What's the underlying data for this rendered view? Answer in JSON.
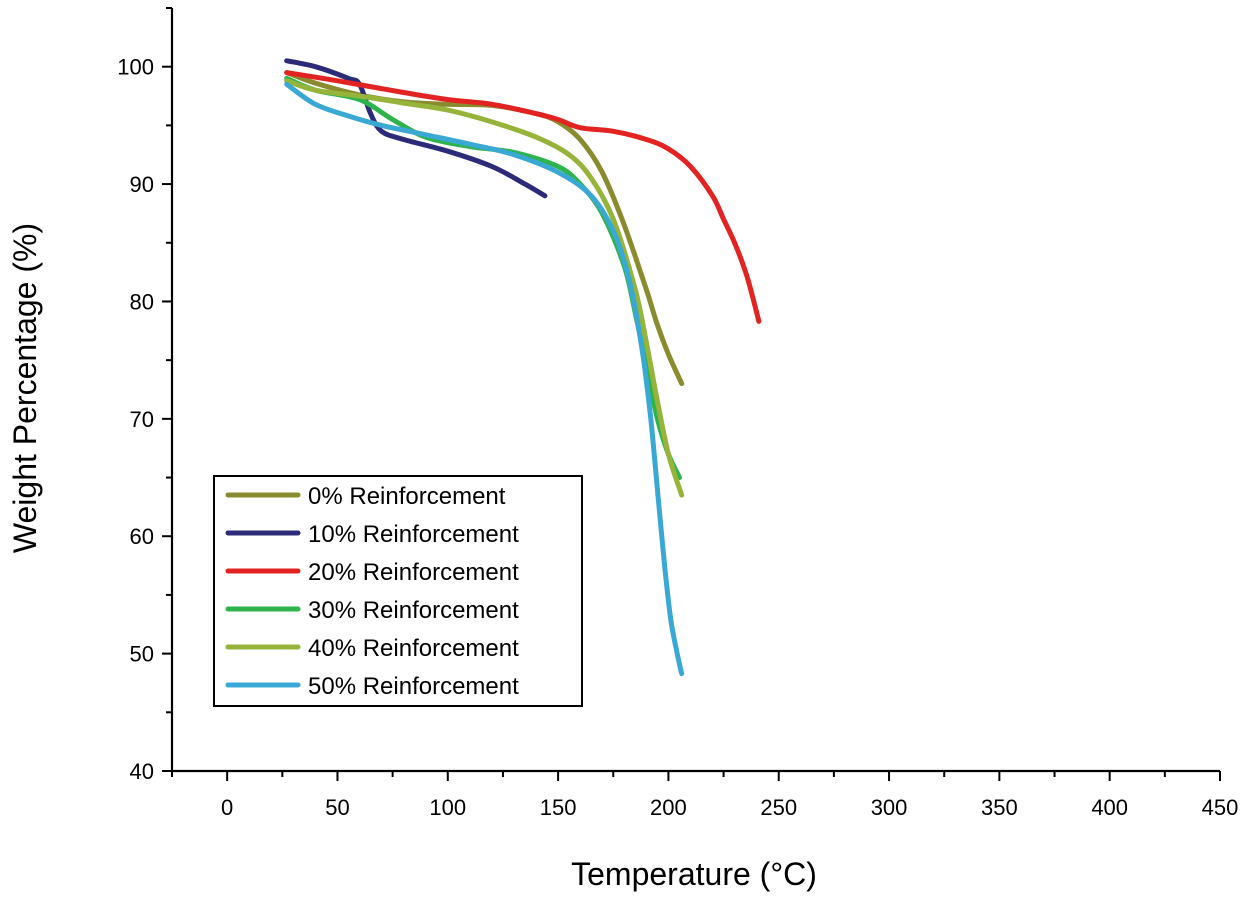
{
  "chart_data": {
    "type": "line",
    "title": "",
    "xlabel": "Temperature (°C)",
    "ylabel": "Weight Percentage (%)",
    "xlim": [
      -25,
      450
    ],
    "ylim": [
      40,
      105
    ],
    "x_ticks": [
      "0",
      "50",
      "100",
      "150",
      "200",
      "250",
      "300",
      "350",
      "400",
      "450"
    ],
    "y_ticks": [
      "40",
      "50",
      "60",
      "70",
      "80",
      "90",
      "100"
    ],
    "grid": false,
    "legend_position": "bottom-left",
    "series": [
      {
        "name": "0% Reinforcement",
        "color": "#8a8a2e",
        "x": [
          27,
          40,
          60,
          80,
          100,
          120,
          140,
          150,
          160,
          170,
          180,
          190,
          195,
          200,
          206
        ],
        "y": [
          99.5,
          98.6,
          97.6,
          97.0,
          96.8,
          96.7,
          96.0,
          95.3,
          93.8,
          91.0,
          86.5,
          81.0,
          78.0,
          75.5,
          73.0
        ]
      },
      {
        "name": "10% Reinforcement",
        "color": "#2b2b7a",
        "x": [
          27,
          40,
          55,
          60,
          65,
          70,
          80,
          100,
          120,
          135,
          144
        ],
        "y": [
          100.5,
          100.0,
          99.0,
          98.5,
          96.0,
          94.5,
          93.8,
          92.8,
          91.5,
          90.0,
          89.0
        ]
      },
      {
        "name": "20% Reinforcement",
        "color": "#e32322",
        "x": [
          27,
          50,
          80,
          100,
          120,
          140,
          150,
          160,
          175,
          190,
          200,
          210,
          220,
          225,
          230,
          235,
          238,
          241
        ],
        "y": [
          99.5,
          98.8,
          97.8,
          97.2,
          96.8,
          96.0,
          95.5,
          94.8,
          94.5,
          93.8,
          93.0,
          91.5,
          89.0,
          87.0,
          85.0,
          82.5,
          80.5,
          78.3
        ]
      },
      {
        "name": "30% Reinforcement",
        "color": "#2fb34d",
        "x": [
          27,
          40,
          60,
          75,
          90,
          110,
          130,
          150,
          160,
          170,
          180,
          185,
          190,
          195,
          200,
          205
        ],
        "y": [
          99.0,
          98.0,
          97.2,
          95.5,
          94.0,
          93.2,
          92.7,
          91.5,
          90.0,
          87.5,
          83.0,
          79.0,
          74.5,
          70.0,
          67.0,
          65.0
        ]
      },
      {
        "name": "40% Reinforcement",
        "color": "#96b43a",
        "x": [
          27,
          40,
          60,
          80,
          100,
          120,
          140,
          155,
          165,
          175,
          185,
          190,
          195,
          200,
          206
        ],
        "y": [
          98.8,
          98.0,
          97.5,
          96.9,
          96.3,
          95.3,
          94.0,
          92.5,
          90.5,
          87.0,
          81.0,
          76.5,
          71.5,
          67.0,
          63.5
        ]
      },
      {
        "name": "50% Reinforcement",
        "color": "#3aa8d4",
        "x": [
          27,
          40,
          55,
          70,
          90,
          110,
          130,
          150,
          165,
          175,
          182,
          188,
          192,
          195,
          198,
          201,
          204,
          206
        ],
        "y": [
          98.5,
          96.8,
          95.8,
          95.0,
          94.2,
          93.4,
          92.5,
          91.0,
          89.0,
          86.0,
          82.0,
          76.0,
          70.0,
          64.0,
          58.0,
          53.0,
          50.0,
          48.3
        ]
      }
    ]
  }
}
